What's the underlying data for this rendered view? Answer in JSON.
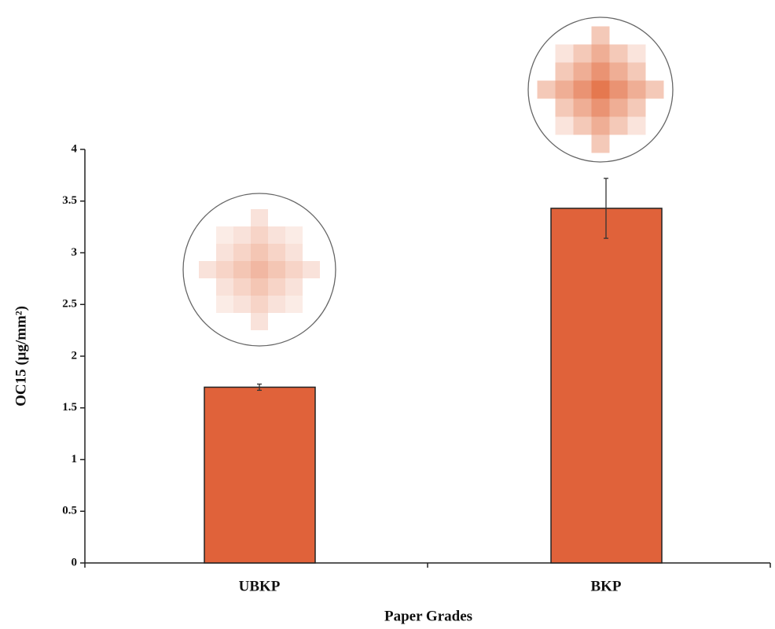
{
  "chart_data": {
    "type": "bar",
    "y_label": "OC15 (μg/mm²)",
    "x_label": "Paper Grades",
    "categories": [
      "UBKP",
      "BKP"
    ],
    "values": [
      1.7,
      3.43
    ],
    "errors": [
      0.03,
      0.29
    ],
    "color": "#e0623a",
    "ylim": [
      0,
      4
    ],
    "yticks": [
      0,
      0.5,
      1,
      1.5,
      2,
      2.5,
      3,
      3.5,
      4
    ],
    "grid": false
  }
}
